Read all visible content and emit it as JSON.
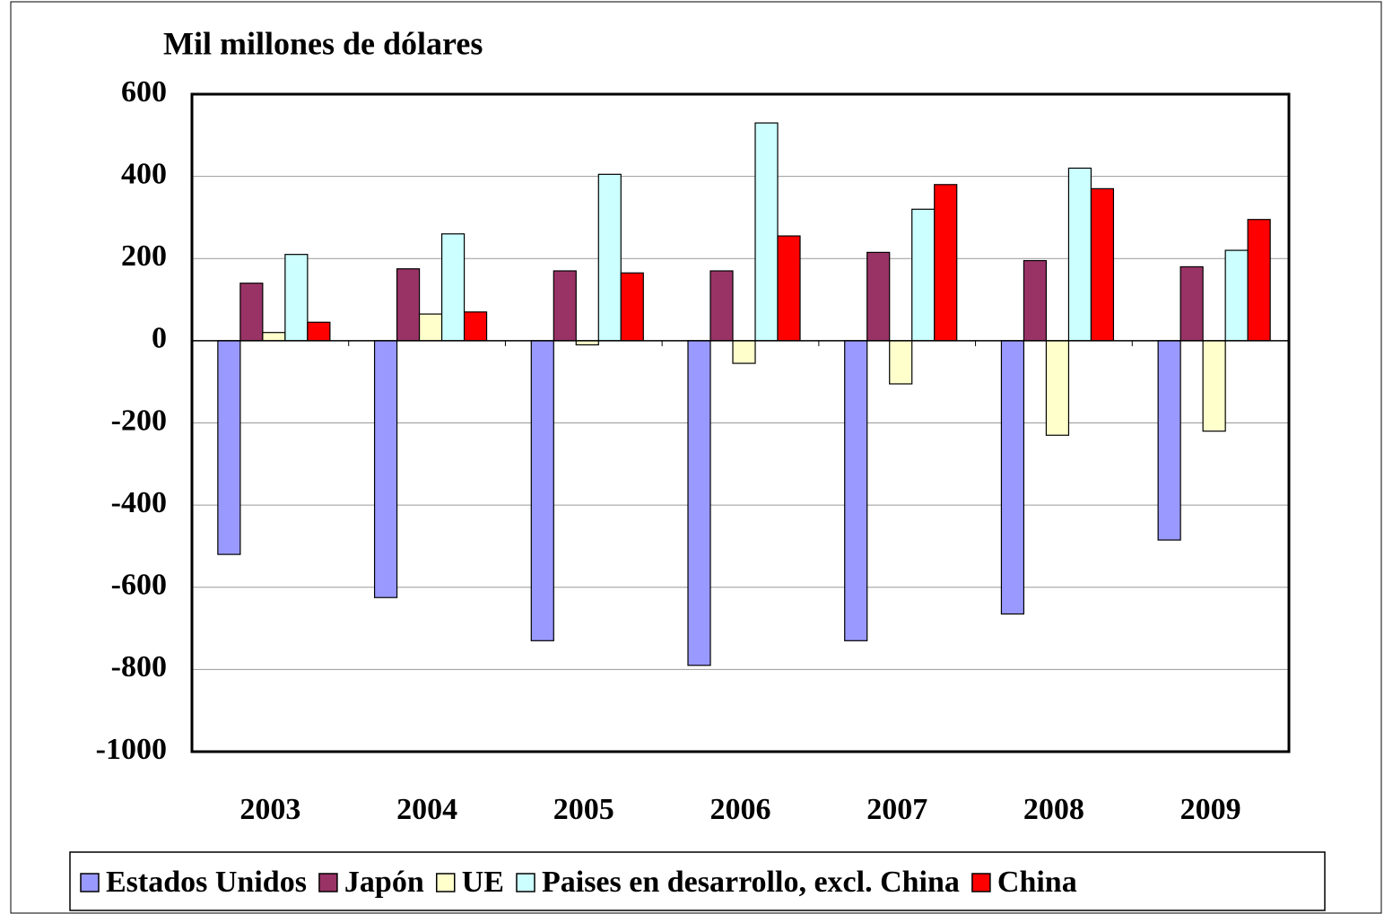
{
  "chart_data": {
    "type": "bar",
    "title": "Mil millones de dólares",
    "categories": [
      "2003",
      "2004",
      "2005",
      "2006",
      "2007",
      "2008",
      "2009"
    ],
    "series": [
      {
        "name": "Estados Unidos",
        "color": "#9999ff",
        "values": [
          -520,
          -625,
          -730,
          -790,
          -730,
          -665,
          -485
        ]
      },
      {
        "name": "Japón",
        "color": "#993366",
        "values": [
          140,
          175,
          170,
          170,
          215,
          195,
          180
        ]
      },
      {
        "name": "UE",
        "color": "#ffffcc",
        "values": [
          20,
          65,
          -10,
          -55,
          -105,
          -230,
          -220
        ]
      },
      {
        "name": "Paises en desarrollo, excl. China",
        "color": "#ccffff",
        "values": [
          210,
          260,
          405,
          530,
          320,
          420,
          220
        ]
      },
      {
        "name": "China",
        "color": "#ff0000",
        "values": [
          45,
          70,
          165,
          255,
          380,
          370,
          295
        ]
      }
    ],
    "ylim": [
      -1000,
      600
    ],
    "yticks": [
      -1000,
      -800,
      -600,
      -400,
      -200,
      0,
      200,
      400,
      600
    ],
    "grid": true,
    "legend": "bottom"
  }
}
